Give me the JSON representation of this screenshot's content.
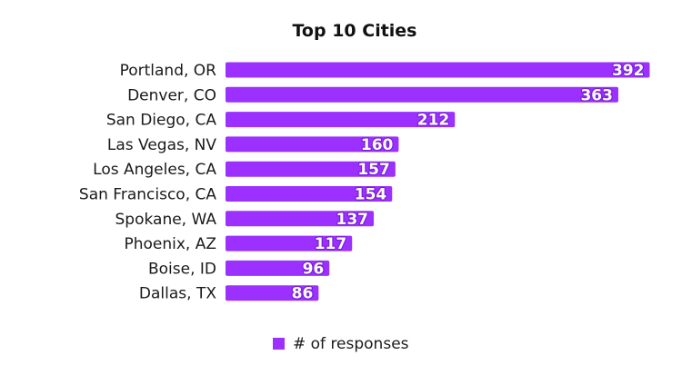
{
  "chart_data": {
    "type": "bar",
    "orientation": "horizontal",
    "title": "Top 10 Cities",
    "categories": [
      "Portland, OR",
      "Denver, CO",
      "San Diego, CA",
      "Las Vegas, NV",
      "Los Angeles, CA",
      "San Francisco, CA",
      "Spokane, WA",
      "Phoenix, AZ",
      "Boise, ID",
      "Dallas, TX"
    ],
    "series": [
      {
        "name": "# of responses",
        "values": [
          392,
          363,
          212,
          160,
          157,
          154,
          137,
          117,
          96,
          86
        ],
        "color": "#9b30ff"
      }
    ],
    "xlim": [
      0,
      400
    ],
    "grid": false,
    "data_labels": true,
    "legend_position": "bottom"
  }
}
